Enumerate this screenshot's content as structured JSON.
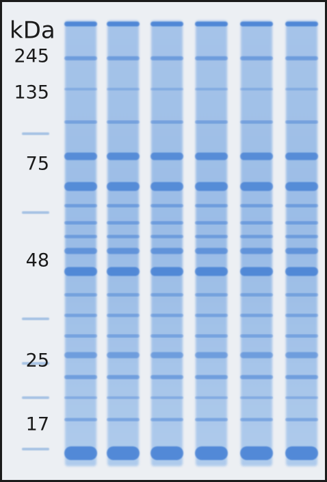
{
  "gel": {
    "unit_label": "kDa",
    "markers": [
      "245",
      "135",
      "75",
      "48",
      "25",
      "17"
    ]
  }
}
